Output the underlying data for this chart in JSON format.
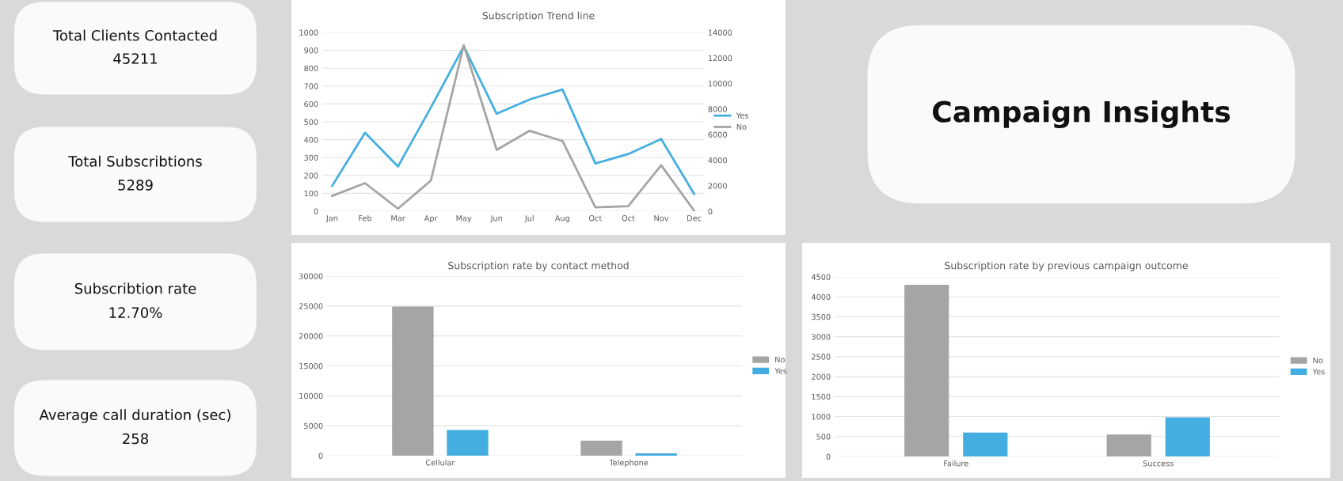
{
  "chart_data": [
    {
      "type": "other",
      "title": "Total Clients Contacted",
      "annotations": [
        "45211"
      ]
    },
    {
      "type": "other",
      "title": "Total Subscribtions",
      "annotations": [
        "5289"
      ]
    },
    {
      "type": "other",
      "title": "Subscribtion rate",
      "annotations": [
        "12.70%"
      ]
    },
    {
      "type": "other",
      "title": "Average call duration (sec)",
      "annotations": [
        "258"
      ]
    },
    {
      "type": "line",
      "title": "Subscription Trend line",
      "categories": [
        "Jan",
        "Feb",
        "Mar",
        "Apr",
        "May",
        "Jun",
        "Jul",
        "Aug",
        "Oct",
        "Oct",
        "Nov",
        "Dec"
      ],
      "series": [
        {
          "name": "Yes",
          "color": "#45aee0",
          "values": [
            142,
            439,
            250,
            580,
            922,
            545,
            625,
            681,
            267,
            320,
            404,
            97
          ]
        },
        {
          "name": "No",
          "color": "#a5a5a5",
          "axis": "y2",
          "values": [
            1200,
            2200,
            200,
            2400,
            13000,
            4800,
            6300,
            5500,
            300,
            400,
            3600,
            50
          ]
        }
      ],
      "ylim": [
        0,
        1000
      ],
      "yticks": [
        0,
        100,
        200,
        300,
        400,
        500,
        600,
        700,
        800,
        900,
        1000
      ],
      "y2lim": [
        0,
        14000
      ],
      "y2ticks": [
        0,
        2000,
        4000,
        6000,
        8000,
        10000,
        12000,
        14000
      ],
      "grid": "y",
      "legend": "right",
      "marker": "none",
      "line_style": "solid"
    },
    {
      "type": "other",
      "title": "Campaign Insights"
    },
    {
      "type": "bar",
      "title": "Subscription rate by contact method",
      "categories": [
        "Cellular",
        "Telephone"
      ],
      "series": [
        {
          "name": "No",
          "color": "#a5a5a5",
          "values": [
            24900,
            2500
          ]
        },
        {
          "name": "Yes",
          "color": "#45aee0",
          "values": [
            4300,
            400
          ]
        }
      ],
      "ylim": [
        0,
        30000
      ],
      "yticks": [
        0,
        5000,
        10000,
        15000,
        20000,
        25000,
        30000
      ],
      "grid": "y",
      "legend": "right"
    },
    {
      "type": "bar",
      "title": "Subscription rate by previous campaign outcome",
      "categories": [
        "Failure",
        "Success"
      ],
      "series": [
        {
          "name": "No",
          "color": "#a5a5a5",
          "values": [
            4300,
            550
          ]
        },
        {
          "name": "Yes",
          "color": "#45aee0",
          "values": [
            600,
            980
          ]
        }
      ],
      "ylim": [
        0,
        4500
      ],
      "yticks": [
        0,
        500,
        1000,
        1500,
        2000,
        2500,
        3000,
        3500,
        4000,
        4500
      ],
      "grid": "y",
      "legend": "right"
    }
  ]
}
